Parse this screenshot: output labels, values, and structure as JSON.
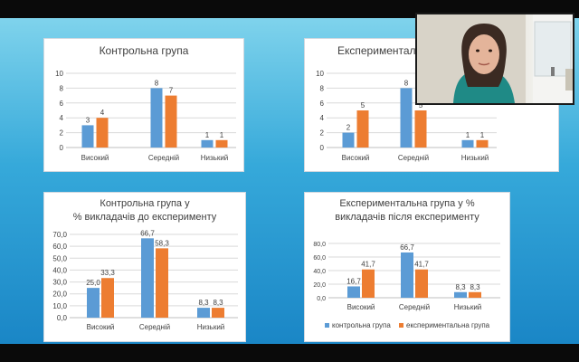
{
  "colors": {
    "series1": "#5b9bd5",
    "series2": "#ed7d31",
    "text": "#404040",
    "grid": "#d9d9d9"
  },
  "webcam": {
    "icon": "participant-video"
  },
  "chart_data": [
    {
      "type": "bar",
      "title": "Контрольна група",
      "categories": [
        "Високий",
        "Середній",
        "Низький"
      ],
      "series": [
        {
          "values": [
            3,
            8,
            1
          ]
        },
        {
          "values": [
            4,
            7,
            1
          ]
        }
      ],
      "value_labels": [
        [
          "3",
          "8",
          "1"
        ],
        [
          "4",
          "7",
          "1"
        ]
      ],
      "yticks": [
        "0",
        "2",
        "4",
        "6",
        "8",
        "10"
      ],
      "ylim": [
        0,
        10
      ],
      "grid": true,
      "legend": null
    },
    {
      "type": "bar",
      "title": "Експериментальна",
      "categories": [
        "Високий",
        "Середній",
        "Низький"
      ],
      "series": [
        {
          "values": [
            2,
            8,
            1
          ]
        },
        {
          "values": [
            5,
            5,
            1
          ]
        }
      ],
      "value_labels": [
        [
          "2",
          "8",
          "1"
        ],
        [
          "5",
          "5",
          "1"
        ]
      ],
      "yticks": [
        "0",
        "2",
        "4",
        "6",
        "8",
        "10"
      ],
      "ylim": [
        0,
        10
      ],
      "grid": true,
      "legend": null
    },
    {
      "type": "bar",
      "title": "Контрольна група у % викладачів до експерименту",
      "categories": [
        "Високий",
        "Середній",
        "Низький"
      ],
      "series": [
        {
          "values": [
            25.0,
            66.7,
            8.3
          ]
        },
        {
          "values": [
            33.3,
            58.3,
            8.3
          ]
        }
      ],
      "value_labels": [
        [
          "25,0",
          "66,7",
          "8,3"
        ],
        [
          "33,3",
          "58,3",
          "8,3"
        ]
      ],
      "yticks": [
        "0,0",
        "10,0",
        "20,0",
        "30,0",
        "40,0",
        "50,0",
        "60,0",
        "70,0"
      ],
      "ylim": [
        0,
        70
      ],
      "grid": true,
      "legend": null
    },
    {
      "type": "bar",
      "title": "Експериментальна група у % викладачів після експерименту",
      "categories": [
        "Високий",
        "Середній",
        "Низький"
      ],
      "series": [
        {
          "name": "контрольна група",
          "values": [
            16.7,
            66.7,
            8.3
          ]
        },
        {
          "name": "експериментальна група",
          "values": [
            41.7,
            41.7,
            8.3
          ]
        }
      ],
      "value_labels": [
        [
          "16,7",
          "66,7",
          "8,3"
        ],
        [
          "41,7",
          "41,7",
          "8,3"
        ]
      ],
      "yticks": [
        "0,0",
        "20,0",
        "40,0",
        "60,0",
        "80,0"
      ],
      "ylim": [
        0,
        80
      ],
      "grid": true,
      "legend": "bottom"
    }
  ]
}
